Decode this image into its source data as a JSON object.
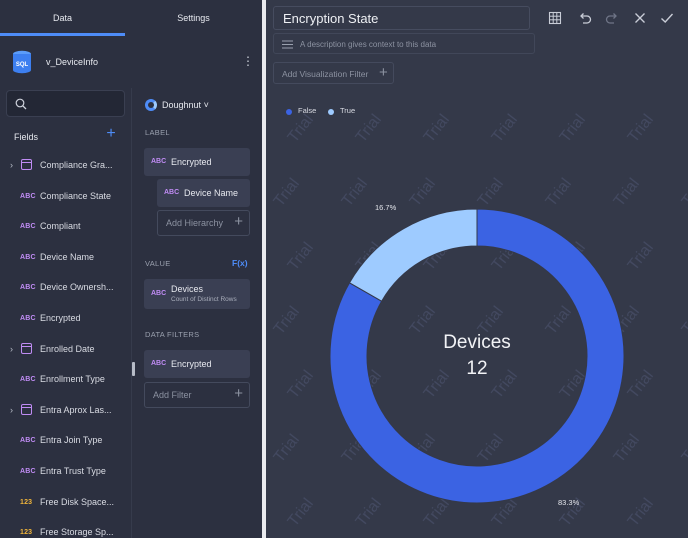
{
  "tabs": {
    "data": "Data",
    "settings": "Settings"
  },
  "datasource": {
    "badge": "SQL",
    "name": "v_DeviceInfo"
  },
  "fields_panel": {
    "title": "Fields",
    "items": [
      {
        "type": "date",
        "name": "Compliance Gra...",
        "expandable": true
      },
      {
        "type": "ABC",
        "name": "Compliance State",
        "expandable": false
      },
      {
        "type": "ABC",
        "name": "Compliant",
        "expandable": false
      },
      {
        "type": "ABC",
        "name": "Device Name",
        "expandable": false
      },
      {
        "type": "ABC",
        "name": "Device Ownersh...",
        "expandable": false
      },
      {
        "type": "ABC",
        "name": "Encrypted",
        "expandable": false
      },
      {
        "type": "date",
        "name": "Enrolled Date",
        "expandable": true
      },
      {
        "type": "ABC",
        "name": "Enrollment Type",
        "expandable": false
      },
      {
        "type": "date",
        "name": "Entra Aprox Las...",
        "expandable": true
      },
      {
        "type": "ABC",
        "name": "Entra Join Type",
        "expandable": false
      },
      {
        "type": "ABC",
        "name": "Entra Trust Type",
        "expandable": false
      },
      {
        "type": "123",
        "name": "Free Disk Space...",
        "expandable": false
      },
      {
        "type": "123",
        "name": "Free Storage Sp...",
        "expandable": false
      }
    ]
  },
  "viz_config": {
    "viz_type": "Doughnut",
    "label_section": "LABEL",
    "label_type": "ABC",
    "label_field": "Encrypted",
    "hierarchy_type": "ABC",
    "hierarchy_field": "Device Name",
    "add_hierarchy": "Add Hierarchy",
    "value_section": "VALUE",
    "fx": "F(x)",
    "value_type": "ABC",
    "value_field": "Devices",
    "value_sub": "Count of Distinct Rows",
    "filters_section": "DATA FILTERS",
    "filter_type": "ABC",
    "filter_field": "Encrypted",
    "add_filter": "Add Filter"
  },
  "editor": {
    "title": "Encryption State",
    "description_placeholder": "A description gives context to this data",
    "add_viz_filter": "Add Visualization Filter",
    "watermark": "Trial"
  },
  "chart_data": {
    "type": "pie",
    "variant": "doughnut",
    "legend": [
      "False",
      "True"
    ],
    "legend_position": "top-left",
    "series": [
      {
        "name": "False",
        "percent": 83.3,
        "label": "83.3%",
        "color": "#3b63e3"
      },
      {
        "name": "True",
        "percent": 16.7,
        "label": "16.7%",
        "color": "#9ecbff"
      }
    ],
    "center_label": "Devices",
    "center_value": "12"
  },
  "colors": {
    "accent": "#4e8cf7",
    "false": "#3b63e3",
    "true": "#9ecbff"
  }
}
